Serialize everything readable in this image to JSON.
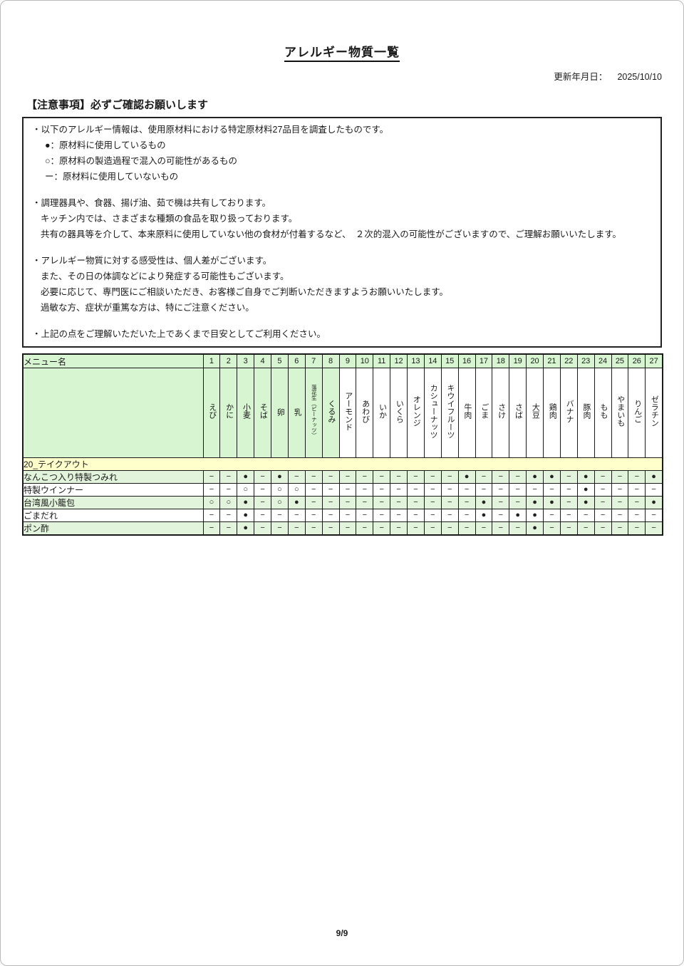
{
  "page": {
    "title": "アレルギー物質一覧",
    "updated_label": "更新年月日：",
    "updated_date": "2025/10/10",
    "notice_heading": "【注意事項】必ずご確認お願いします",
    "page_number": "9/9"
  },
  "legend_colors": {
    "header_green": "#d6f5d0",
    "row_green": "#e3f4dc",
    "section_yellow": "#ffffcc"
  },
  "notice_lines": [
    {
      "text": "・以下のアレルギー情報は、使用原材料における特定原材料27品目を調査したものです。",
      "indent": 0
    },
    {
      "text": "●：原材料に使用しているもの",
      "indent": 2
    },
    {
      "text": "○：原材料の製造過程で混入の可能性があるもの",
      "indent": 2
    },
    {
      "text": "ー：原材料に使用していないもの",
      "indent": 2
    },
    {
      "text": "",
      "indent": 0
    },
    {
      "text": "・調理器具や、食器、揚げ油、茹で機は共有しております。",
      "indent": 0
    },
    {
      "text": "キッチン内では、さまざまな種類の食品を取り扱っております。",
      "indent": 1
    },
    {
      "text": "共有の器具等を介して、本来原料に使用していない他の食材が付着するなど、　２次的混入の可能性がございますので、ご理解お願いいたします。",
      "indent": 1
    },
    {
      "text": "",
      "indent": 0
    },
    {
      "text": "・アレルギー物質に対する感受性は、個人差がございます。",
      "indent": 0
    },
    {
      "text": "また、その日の体調などにより発症する可能性もございます。",
      "indent": 1
    },
    {
      "text": "必要に応じて、専門医にご相談いただき、お客様ご自身でご判断いただきますようお願いいたします。",
      "indent": 1
    },
    {
      "text": "過敏な方、症状が重篤な方は、特にご注意ください。",
      "indent": 1
    },
    {
      "text": "",
      "indent": 0
    },
    {
      "text": "・上記の点をご理解いただいた上であくまで目安としてご利用ください。",
      "indent": 0
    }
  ],
  "table": {
    "menu_header": "メニュー名",
    "section_label": "20_テイクアウト",
    "columns": [
      {
        "num": "1",
        "name": "えび",
        "highlight": true
      },
      {
        "num": "2",
        "name": "かに",
        "highlight": true
      },
      {
        "num": "3",
        "name": "小麦",
        "highlight": true
      },
      {
        "num": "4",
        "name": "そば",
        "highlight": true
      },
      {
        "num": "5",
        "name": "卵",
        "highlight": true
      },
      {
        "num": "6",
        "name": "乳",
        "highlight": true
      },
      {
        "num": "7",
        "name": "落花生（ピーナッツ）",
        "highlight": true,
        "small": true
      },
      {
        "num": "8",
        "name": "くるみ",
        "highlight": true
      },
      {
        "num": "9",
        "name": "アーモンド",
        "highlight": false
      },
      {
        "num": "10",
        "name": "あわび",
        "highlight": false
      },
      {
        "num": "11",
        "name": "いか",
        "highlight": false
      },
      {
        "num": "12",
        "name": "いくら",
        "highlight": false
      },
      {
        "num": "13",
        "name": "オレンジ",
        "highlight": false
      },
      {
        "num": "14",
        "name": "カシューナッツ",
        "highlight": false
      },
      {
        "num": "15",
        "name": "キウイフルーツ",
        "highlight": false
      },
      {
        "num": "16",
        "name": "牛肉",
        "highlight": false
      },
      {
        "num": "17",
        "name": "ごま",
        "highlight": false
      },
      {
        "num": "18",
        "name": "さけ",
        "highlight": false
      },
      {
        "num": "19",
        "name": "さば",
        "highlight": false
      },
      {
        "num": "20",
        "name": "大豆",
        "highlight": false
      },
      {
        "num": "21",
        "name": "鶏肉",
        "highlight": false
      },
      {
        "num": "22",
        "name": "バナナ",
        "highlight": false
      },
      {
        "num": "23",
        "name": "豚肉",
        "highlight": false
      },
      {
        "num": "24",
        "name": "もも",
        "highlight": false
      },
      {
        "num": "25",
        "name": "やまいも",
        "highlight": false
      },
      {
        "num": "26",
        "name": "りんご",
        "highlight": false
      },
      {
        "num": "27",
        "name": "ゼラチン",
        "highlight": false
      }
    ],
    "rows": [
      {
        "name": "なんこつ入り特製つみれ",
        "green": true,
        "marks": [
          "−",
          "−",
          "●",
          "−",
          "●",
          "−",
          "−",
          "−",
          "−",
          "−",
          "−",
          "−",
          "−",
          "−",
          "−",
          "●",
          "−",
          "−",
          "−",
          "●",
          "●",
          "−",
          "●",
          "−",
          "−",
          "−",
          "●"
        ]
      },
      {
        "name": "特製ウインナー",
        "green": false,
        "marks": [
          "−",
          "−",
          "○",
          "−",
          "○",
          "○",
          "−",
          "−",
          "−",
          "−",
          "−",
          "−",
          "−",
          "−",
          "−",
          "−",
          "−",
          "−",
          "−",
          "−",
          "−",
          "−",
          "●",
          "−",
          "−",
          "−",
          "−"
        ]
      },
      {
        "name": "台湾風小籠包",
        "green": true,
        "marks": [
          "○",
          "○",
          "●",
          "−",
          "○",
          "●",
          "−",
          "−",
          "−",
          "−",
          "−",
          "−",
          "−",
          "−",
          "−",
          "−",
          "●",
          "−",
          "−",
          "●",
          "●",
          "−",
          "●",
          "−",
          "−",
          "−",
          "●"
        ]
      },
      {
        "name": "ごまだれ",
        "green": false,
        "marks": [
          "−",
          "−",
          "●",
          "−",
          "−",
          "−",
          "−",
          "−",
          "−",
          "−",
          "−",
          "−",
          "−",
          "−",
          "−",
          "−",
          "●",
          "−",
          "●",
          "●",
          "−",
          "−",
          "−",
          "−",
          "−",
          "−",
          "−"
        ]
      },
      {
        "name": "ポン酢",
        "green": true,
        "marks": [
          "−",
          "−",
          "●",
          "−",
          "−",
          "−",
          "−",
          "−",
          "−",
          "−",
          "−",
          "−",
          "−",
          "−",
          "−",
          "−",
          "−",
          "−",
          "−",
          "●",
          "−",
          "−",
          "−",
          "−",
          "−",
          "−",
          "−"
        ]
      }
    ]
  }
}
